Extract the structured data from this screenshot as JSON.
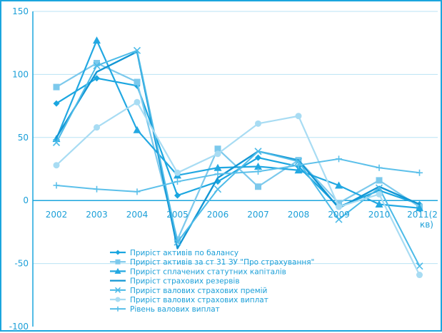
{
  "chart_data": {
    "type": "line",
    "categories": [
      "2002",
      "2003",
      "2004",
      "2005",
      "2006",
      "2007",
      "2008",
      "2009",
      "2010",
      "2011(2 кв)"
    ],
    "ylim": [
      -100,
      150
    ],
    "yticks": [
      "-100",
      "-50",
      "0",
      "50",
      "100",
      "150"
    ],
    "grid": "horizontal",
    "legend_position": "bottom-center",
    "series": [
      {
        "name": "Приріст активів по балансу",
        "color": "#1aa6e0",
        "marker": "diamond",
        "width": 2.2,
        "values": [
          77,
          97,
          91,
          4,
          15,
          34,
          27,
          -5,
          8,
          -3
        ]
      },
      {
        "name": "Приріст активів за ст 31 ЗУ \"Про страхування\"",
        "color": "#7cc9ec",
        "marker": "square",
        "width": 2.2,
        "values": [
          90,
          109,
          94,
          -31,
          41,
          11,
          32,
          -2,
          16,
          -5
        ]
      },
      {
        "name": "Приріст сплачених статутних капіталів",
        "color": "#22a8e2",
        "marker": "triangle",
        "width": 2.2,
        "values": [
          49,
          127,
          56,
          20,
          26,
          27,
          24,
          12,
          -3,
          -6
        ]
      },
      {
        "name": "Приріст страхових резервів",
        "color": "#1296d4",
        "marker": "none",
        "width": 2.4,
        "values": [
          50,
          102,
          118,
          -38,
          18,
          39,
          32,
          -6,
          11,
          -3
        ]
      },
      {
        "name": "Приріст валових страхових премій",
        "color": "#4dbbe8",
        "marker": "x",
        "width": 2.0,
        "values": [
          46,
          107,
          119,
          -33,
          9,
          39,
          31,
          -15,
          10,
          -52
        ]
      },
      {
        "name": "Приріст валових страхових виплат",
        "color": "#a8dcf3",
        "marker": "circle",
        "width": 2.2,
        "values": [
          28,
          58,
          78,
          22,
          37,
          61,
          67,
          -5,
          5,
          -59
        ]
      },
      {
        "name": "Рівень валових виплат",
        "color": "#5cc0ea",
        "marker": "plus",
        "width": 2.0,
        "values": [
          12,
          9,
          7,
          15,
          21,
          23,
          28,
          33,
          26,
          22
        ]
      }
    ]
  }
}
